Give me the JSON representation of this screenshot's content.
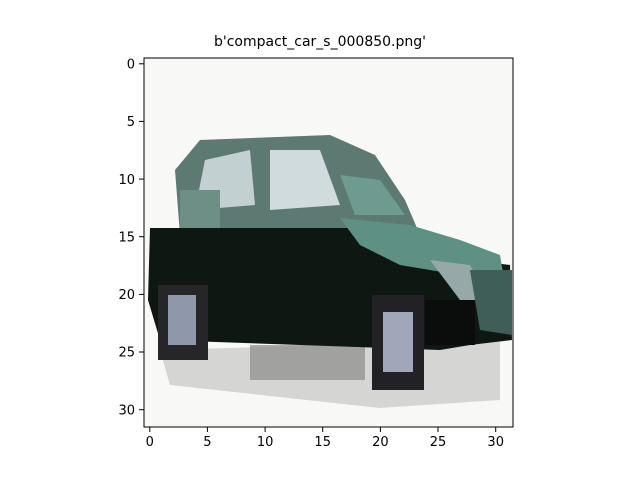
{
  "figure": {
    "title": "b'compact_car_s_000850.png'"
  },
  "image": {
    "subject": "compact car (dark green, left-front view), 32x32 px thumbnail",
    "palette": {
      "background": "#f7f7f5",
      "body_dark": "#0e1512",
      "body_green": "#5f8f84",
      "window": "#b9c9cb",
      "tire": "#2b2b2f",
      "rim": "#8c93a6",
      "shadow": "#6e6e6e"
    }
  },
  "axes": {
    "x_ticks": [
      "0",
      "5",
      "10",
      "15",
      "20",
      "25",
      "30"
    ],
    "y_ticks": [
      "0",
      "5",
      "10",
      "15",
      "20",
      "25",
      "30"
    ],
    "xlim": [
      -0.5,
      31.5
    ],
    "ylim": [
      31.5,
      -0.5
    ]
  }
}
